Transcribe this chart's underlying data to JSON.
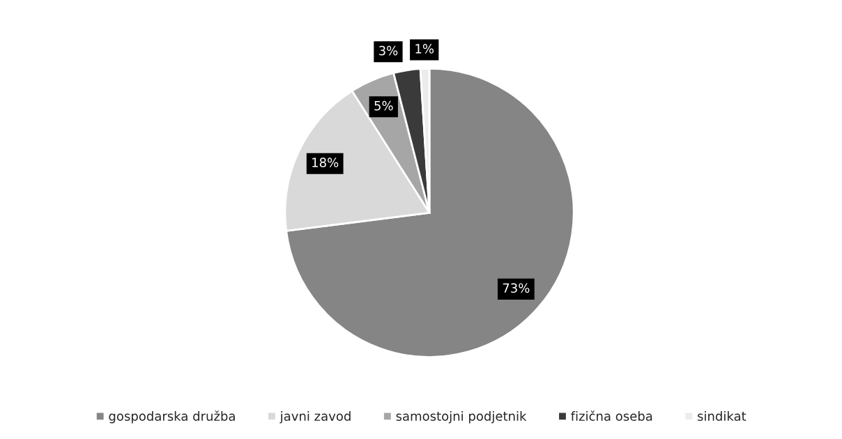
{
  "chart_data": {
    "type": "pie",
    "categories": [
      "gospodarska družba",
      "javni zavod",
      "samostojni podjetnik",
      "fizična oseba",
      "sindikat"
    ],
    "values": [
      73,
      18,
      5,
      3,
      1
    ],
    "colors": [
      "#858585",
      "#d9d9d9",
      "#a6a6a6",
      "#3a3a3a",
      "#ececec"
    ],
    "value_labels": [
      "73%",
      "18%",
      "5%",
      "3%",
      "1%"
    ],
    "legend": "bottom"
  }
}
